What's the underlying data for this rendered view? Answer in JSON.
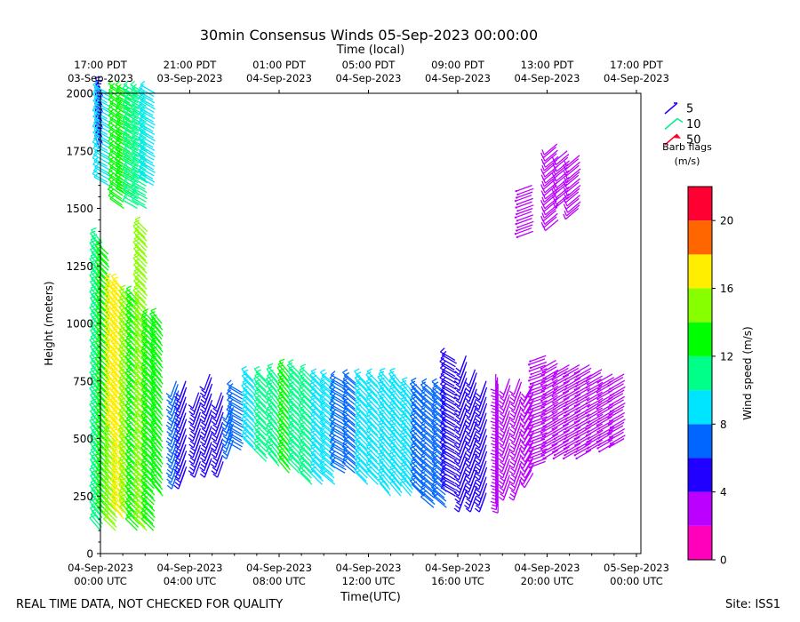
{
  "title": "30min Consensus Winds 05-Sep-2023 00:00:00",
  "top_axis_title": "Time (local)",
  "footer": {
    "note": "REAL TIME DATA, NOT CHECKED FOR QUALITY",
    "site": "Site: ISS1"
  },
  "legend": {
    "barbs": [
      {
        "label": "5",
        "color": "#2200ff"
      },
      {
        "label": "10",
        "color": "#00ee88"
      },
      {
        "label": "50",
        "color": "#ff0033"
      }
    ],
    "caption_line1": "Barb flags",
    "caption_line2": "(m/s)"
  },
  "colorbar": {
    "label": "Wind speed (m/s)",
    "min": 0,
    "max": 22,
    "ticks": [
      0,
      4,
      8,
      12,
      16,
      20
    ],
    "bands": [
      {
        "from": 0,
        "to": 2,
        "color": "#ff00bb"
      },
      {
        "from": 2,
        "to": 4,
        "color": "#bb00ff"
      },
      {
        "from": 4,
        "to": 6,
        "color": "#2200ff"
      },
      {
        "from": 6,
        "to": 8,
        "color": "#0066ff"
      },
      {
        "from": 8,
        "to": 10,
        "color": "#00e5ff"
      },
      {
        "from": 10,
        "to": 12,
        "color": "#00ff88"
      },
      {
        "from": 12,
        "to": 14,
        "color": "#00ff00"
      },
      {
        "from": 14,
        "to": 16,
        "color": "#88ff00"
      },
      {
        "from": 16,
        "to": 18,
        "color": "#ffee00"
      },
      {
        "from": 18,
        "to": 20,
        "color": "#ff6600"
      },
      {
        "from": 20,
        "to": 22,
        "color": "#ff0033"
      }
    ]
  },
  "chart_data": {
    "type": "wind_barb_profile",
    "xlabel": "Time(UTC)",
    "ylabel": "Height (meters)",
    "xlim_hours": [
      0,
      24.2
    ],
    "ylim": [
      0,
      2000
    ],
    "y_ticks": [
      0,
      250,
      500,
      750,
      1000,
      1250,
      1500,
      1750,
      2000
    ],
    "bottom_ticks": [
      {
        "hour": 0,
        "line1": "04-Sep-2023",
        "line2": "00:00 UTC"
      },
      {
        "hour": 4,
        "line1": "04-Sep-2023",
        "line2": "04:00 UTC"
      },
      {
        "hour": 8,
        "line1": "04-Sep-2023",
        "line2": "08:00 UTC"
      },
      {
        "hour": 12,
        "line1": "04-Sep-2023",
        "line2": "12:00 UTC"
      },
      {
        "hour": 16,
        "line1": "04-Sep-2023",
        "line2": "16:00 UTC"
      },
      {
        "hour": 20,
        "line1": "04-Sep-2023",
        "line2": "20:00 UTC"
      },
      {
        "hour": 24,
        "line1": "05-Sep-2023",
        "line2": "00:00 UTC"
      }
    ],
    "top_ticks": [
      {
        "hour": 0,
        "line1": "17:00 PDT",
        "line2": "03-Sep-2023"
      },
      {
        "hour": 4,
        "line1": "21:00 PDT",
        "line2": "03-Sep-2023"
      },
      {
        "hour": 8,
        "line1": "01:00 PDT",
        "line2": "04-Sep-2023"
      },
      {
        "hour": 12,
        "line1": "05:00 PDT",
        "line2": "04-Sep-2023"
      },
      {
        "hour": 16,
        "line1": "09:00 PDT",
        "line2": "04-Sep-2023"
      },
      {
        "hour": 20,
        "line1": "13:00 PDT",
        "line2": "04-Sep-2023"
      },
      {
        "hour": 24,
        "line1": "17:00 PDT",
        "line2": "04-Sep-2023"
      }
    ],
    "profiles": [
      {
        "hour": 0.05,
        "segments": [
          {
            "from": 1750,
            "to": 2000,
            "speed": 5,
            "dir": 340
          },
          {
            "from": 100,
            "to": 1350,
            "speed": 10,
            "dir": 320
          }
        ]
      },
      {
        "hour": 0.35,
        "segments": [
          {
            "from": 1600,
            "to": 2000,
            "speed": 9,
            "dir": 300
          },
          {
            "from": 150,
            "to": 1300,
            "speed": 13,
            "dir": 315
          }
        ]
      },
      {
        "hour": 0.7,
        "segments": [
          {
            "from": 500,
            "to": 1150,
            "speed": 16,
            "dir": 320
          },
          {
            "from": 100,
            "to": 500,
            "speed": 14,
            "dir": 315
          }
        ]
      },
      {
        "hour": 1.0,
        "segments": [
          {
            "from": 1500,
            "to": 2000,
            "speed": 13,
            "dir": 305
          },
          {
            "from": 150,
            "to": 1150,
            "speed": 17,
            "dir": 320
          }
        ]
      },
      {
        "hour": 1.35,
        "segments": [
          {
            "from": 1550,
            "to": 2000,
            "speed": 12,
            "dir": 300
          },
          {
            "from": 150,
            "to": 1100,
            "speed": 15,
            "dir": 320
          }
        ]
      },
      {
        "hour": 1.7,
        "segments": [
          {
            "from": 1500,
            "to": 2000,
            "speed": 10,
            "dir": 300
          },
          {
            "from": 100,
            "to": 1100,
            "speed": 13,
            "dir": 315
          }
        ]
      },
      {
        "hour": 2.05,
        "segments": [
          {
            "from": 1500,
            "to": 2000,
            "speed": 11,
            "dir": 300
          },
          {
            "from": 100,
            "to": 1400,
            "speed": 14,
            "dir": 315
          }
        ]
      },
      {
        "hour": 2.4,
        "segments": [
          {
            "from": 1600,
            "to": 2000,
            "speed": 9,
            "dir": 300
          },
          {
            "from": 100,
            "to": 1000,
            "speed": 12,
            "dir": 315
          }
        ]
      },
      {
        "hour": 2.75,
        "segments": [
          {
            "from": 250,
            "to": 1000,
            "speed": 13,
            "dir": 320
          }
        ]
      },
      {
        "hour": 3.45,
        "segments": [
          {
            "from": 350,
            "to": 750,
            "speed": 6,
            "dir": 200
          }
        ]
      },
      {
        "hour": 3.8,
        "segments": [
          {
            "from": 350,
            "to": 750,
            "speed": 5,
            "dir": 200
          }
        ]
      },
      {
        "hour": 4.45,
        "segments": [
          {
            "from": 400,
            "to": 700,
            "speed": 5,
            "dir": 200
          }
        ]
      },
      {
        "hour": 4.95,
        "segments": [
          {
            "from": 400,
            "to": 780,
            "speed": 5,
            "dir": 200
          }
        ]
      },
      {
        "hour": 5.45,
        "segments": [
          {
            "from": 400,
            "to": 700,
            "speed": 5,
            "dir": 200
          }
        ]
      },
      {
        "hour": 5.9,
        "segments": [
          {
            "from": 480,
            "to": 650,
            "speed": 6,
            "dir": 200
          }
        ]
      },
      {
        "hour": 6.35,
        "segments": [
          {
            "from": 450,
            "to": 700,
            "speed": 7,
            "dir": 300
          }
        ]
      },
      {
        "hour": 6.9,
        "segments": [
          {
            "from": 450,
            "to": 750,
            "speed": 8,
            "dir": 315
          }
        ]
      },
      {
        "hour": 7.45,
        "segments": [
          {
            "from": 400,
            "to": 750,
            "speed": 10,
            "dir": 315
          }
        ]
      },
      {
        "hour": 7.95,
        "segments": [
          {
            "from": 380,
            "to": 760,
            "speed": 11,
            "dir": 320
          }
        ]
      },
      {
        "hour": 8.45,
        "segments": [
          {
            "from": 350,
            "to": 780,
            "speed": 12,
            "dir": 320
          }
        ]
      },
      {
        "hour": 8.95,
        "segments": [
          {
            "from": 350,
            "to": 780,
            "speed": 11,
            "dir": 315
          }
        ]
      },
      {
        "hour": 9.45,
        "segments": [
          {
            "from": 300,
            "to": 760,
            "speed": 10,
            "dir": 315
          }
        ]
      },
      {
        "hour": 9.95,
        "segments": [
          {
            "from": 300,
            "to": 740,
            "speed": 9,
            "dir": 315
          }
        ]
      },
      {
        "hour": 10.45,
        "segments": [
          {
            "from": 300,
            "to": 740,
            "speed": 9,
            "dir": 310
          }
        ]
      },
      {
        "hour": 10.95,
        "segments": [
          {
            "from": 350,
            "to": 740,
            "speed": 7,
            "dir": 300
          }
        ]
      },
      {
        "hour": 11.45,
        "segments": [
          {
            "from": 350,
            "to": 740,
            "speed": 7,
            "dir": 310
          }
        ]
      },
      {
        "hour": 11.95,
        "segments": [
          {
            "from": 300,
            "to": 740,
            "speed": 8,
            "dir": 315
          }
        ]
      },
      {
        "hour": 12.45,
        "segments": [
          {
            "from": 300,
            "to": 740,
            "speed": 8,
            "dir": 315
          }
        ]
      },
      {
        "hour": 12.95,
        "segments": [
          {
            "from": 250,
            "to": 740,
            "speed": 9,
            "dir": 320
          }
        ]
      },
      {
        "hour": 13.45,
        "segments": [
          {
            "from": 250,
            "to": 740,
            "speed": 9,
            "dir": 320
          }
        ]
      },
      {
        "hour": 13.95,
        "segments": [
          {
            "from": 250,
            "to": 700,
            "speed": 8,
            "dir": 320
          }
        ]
      },
      {
        "hour": 14.45,
        "segments": [
          {
            "from": 250,
            "to": 700,
            "speed": 7,
            "dir": 315
          }
        ]
      },
      {
        "hour": 14.95,
        "segments": [
          {
            "from": 200,
            "to": 700,
            "speed": 7,
            "dir": 310
          }
        ]
      },
      {
        "hour": 15.45,
        "segments": [
          {
            "from": 200,
            "to": 700,
            "speed": 6,
            "dir": 310
          }
        ]
      },
      {
        "hour": 15.9,
        "segments": [
          {
            "from": 250,
            "to": 840,
            "speed": 5,
            "dir": 300
          }
        ]
      },
      {
        "hour": 16.35,
        "segments": [
          {
            "from": 250,
            "to": 860,
            "speed": 4,
            "dir": 200
          }
        ]
      },
      {
        "hour": 16.8,
        "segments": [
          {
            "from": 250,
            "to": 800,
            "speed": 4,
            "dir": 200
          }
        ]
      },
      {
        "hour": 17.25,
        "segments": [
          {
            "from": 250,
            "to": 750,
            "speed": 4,
            "dir": 200
          }
        ]
      },
      {
        "hour": 17.75,
        "segments": [
          {
            "from": 250,
            "to": 780,
            "speed": 3,
            "dir": 180
          }
        ]
      },
      {
        "hour": 18.3,
        "segments": [
          {
            "from": 300,
            "to": 760,
            "speed": 3,
            "dir": 200
          }
        ]
      },
      {
        "hour": 18.8,
        "segments": [
          {
            "from": 300,
            "to": 760,
            "speed": 3,
            "dir": 200
          }
        ]
      },
      {
        "hour": 19.35,
        "segments": [
          {
            "from": 350,
            "to": 740,
            "speed": 3,
            "dir": 210
          },
          {
            "from": 1400,
            "to": 1600,
            "speed": 2,
            "dir": 250
          }
        ]
      },
      {
        "hour": 19.95,
        "segments": [
          {
            "from": 400,
            "to": 860,
            "speed": 2,
            "dir": 250
          }
        ]
      },
      {
        "hour": 20.45,
        "segments": [
          {
            "from": 450,
            "to": 840,
            "speed": 2,
            "dir": 240
          },
          {
            "from": 1450,
            "to": 1780,
            "speed": 3,
            "dir": 230
          }
        ]
      },
      {
        "hour": 20.95,
        "segments": [
          {
            "from": 450,
            "to": 820,
            "speed": 2,
            "dir": 240
          },
          {
            "from": 1550,
            "to": 1750,
            "speed": 3,
            "dir": 230
          }
        ]
      },
      {
        "hour": 21.45,
        "segments": [
          {
            "from": 450,
            "to": 820,
            "speed": 2,
            "dir": 240
          },
          {
            "from": 1500,
            "to": 1730,
            "speed": 3,
            "dir": 230
          }
        ]
      },
      {
        "hour": 21.95,
        "segments": [
          {
            "from": 450,
            "to": 820,
            "speed": 2,
            "dir": 240
          }
        ]
      },
      {
        "hour": 22.45,
        "segments": [
          {
            "from": 480,
            "to": 800,
            "speed": 2,
            "dir": 240
          }
        ]
      },
      {
        "hour": 22.95,
        "segments": [
          {
            "from": 480,
            "to": 780,
            "speed": 2,
            "dir": 240
          }
        ]
      },
      {
        "hour": 23.45,
        "segments": [
          {
            "from": 500,
            "to": 780,
            "speed": 2,
            "dir": 240
          }
        ]
      }
    ]
  }
}
